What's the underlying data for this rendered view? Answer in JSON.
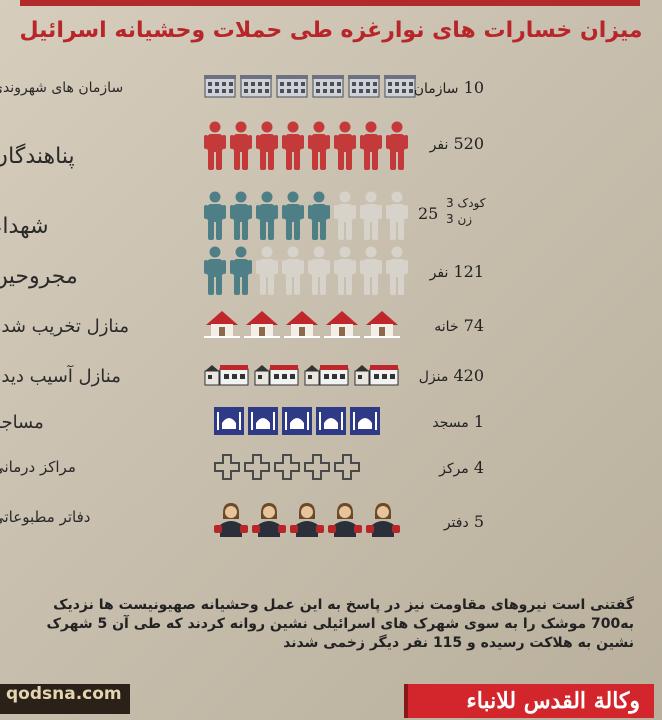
{
  "title": "میزان خسارات های نوارغزه طی حملات وحشیانه اسرائیل",
  "colors": {
    "accent": "#b8262a",
    "person_red": "#c43a3a",
    "person_teal": "#4f7f86",
    "person_grey": "#d8d3ca",
    "mosque_blue": "#2e3a86",
    "house_red": "#c0272d"
  },
  "rows": [
    {
      "label": "سازمان های شهروندی",
      "value": "10",
      "unit": "سازمان",
      "icon": "building-icon",
      "count": 6
    },
    {
      "label": "پناهندگان",
      "value": "520",
      "unit": "نفر",
      "icon": "person-icon",
      "count": 8,
      "highlight": 8
    },
    {
      "label": "شهداء",
      "value": "25",
      "unit": "",
      "sub": [
        "کودک 3",
        "زن 3"
      ],
      "icon": "person-icon",
      "count": 8,
      "highlight": 5
    },
    {
      "label": "مجروحین",
      "value": "121",
      "unit": "نفر",
      "icon": "person-icon",
      "count": 8,
      "highlight": 2
    },
    {
      "label": "منازل تخریب شده",
      "value": "74",
      "unit": "خانه",
      "icon": "house-icon",
      "count": 5
    },
    {
      "label": "منازل آسیب دیده",
      "value": "420",
      "unit": "منزل",
      "icon": "damaged-house-icon",
      "count": 4
    },
    {
      "label": "مساجد",
      "value": "1",
      "unit": "مسجد",
      "icon": "mosque-icon",
      "count": 5
    },
    {
      "label": "مراکز درمانی",
      "value": "4",
      "unit": "مرکز",
      "icon": "cross-icon",
      "count": 5
    },
    {
      "label": "دفاتر مطبوعاتی",
      "value": "5",
      "unit": "دفتر",
      "icon": "journalist-icon",
      "count": 5
    }
  ],
  "bottom_text": "گفتنی است نیروهای مقاومت نیز در پاسخ به این عمل وحشیانه صهیونیست ها نزدیک به700 موشک را به سوی شهرک های اسرائیلی نشین روانه کردند که طی آن 5 شهرک نشین به هلاکت رسیده و 115 نفر دیگر زخمی شدند",
  "watermark": "qodsna.com",
  "agency": "وكالة القدس للانباء"
}
